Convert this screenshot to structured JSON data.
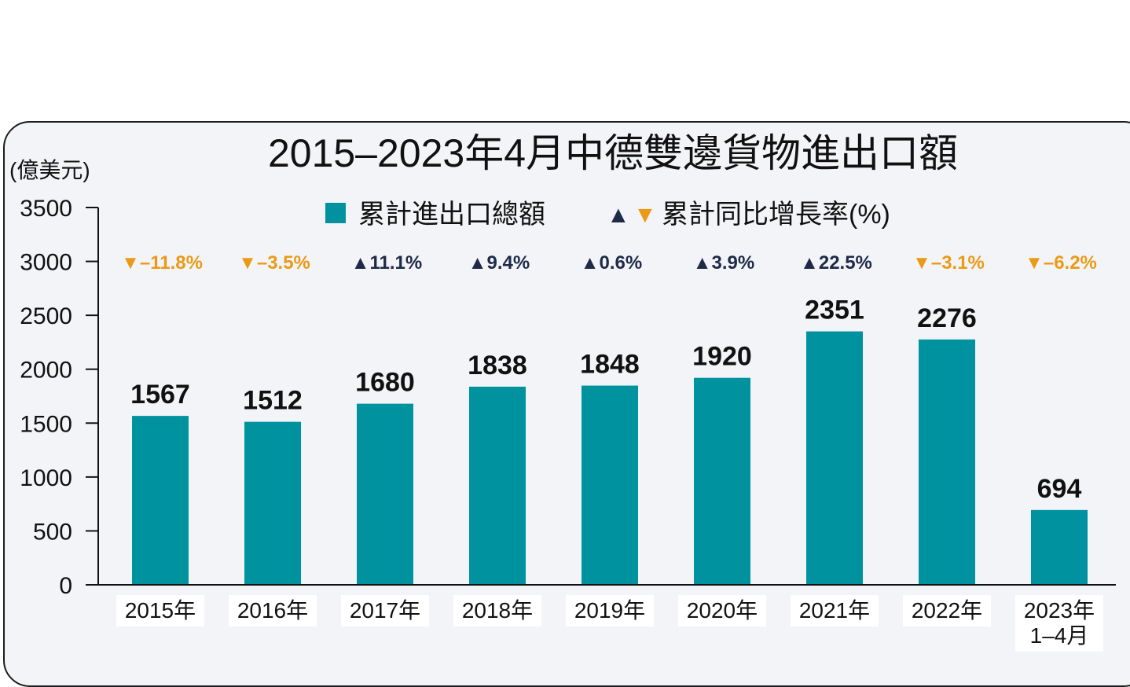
{
  "colors": {
    "bar": "#00939f",
    "up": "#1e2a48",
    "down": "#eb9a16",
    "text": "#111111"
  },
  "legend": {
    "bar_label": "累計進出口總額",
    "growth_label": "累計同比增長率(%)",
    "up_marker": "▲",
    "down_marker": "▼"
  },
  "chart_data": {
    "type": "bar",
    "title": "2015–2023年4月中德雙邊貨物進出口額",
    "ylabel": "(億美元)",
    "xlabel": "",
    "ylim": [
      0,
      3500
    ],
    "yticks": [
      0,
      500,
      1000,
      1500,
      2000,
      2500,
      3000,
      3500
    ],
    "grid": false,
    "legend_position": "top",
    "categories": [
      "2015年",
      "2016年",
      "2017年",
      "2018年",
      "2019年",
      "2020年",
      "2021年",
      "2022年",
      "2023年\n1–4月"
    ],
    "series": [
      {
        "name": "累計進出口總額",
        "values": [
          1567,
          1512,
          1680,
          1838,
          1848,
          1920,
          2351,
          2276,
          694
        ]
      }
    ],
    "growth": [
      {
        "direction": "down",
        "label": "–11.8%"
      },
      {
        "direction": "down",
        "label": "–3.5%"
      },
      {
        "direction": "up",
        "label": "11.1%"
      },
      {
        "direction": "up",
        "label": "9.4%"
      },
      {
        "direction": "up",
        "label": "0.6%"
      },
      {
        "direction": "up",
        "label": "3.9%"
      },
      {
        "direction": "up",
        "label": "22.5%"
      },
      {
        "direction": "down",
        "label": "–3.1%"
      },
      {
        "direction": "down",
        "label": "–6.2%"
      }
    ]
  }
}
